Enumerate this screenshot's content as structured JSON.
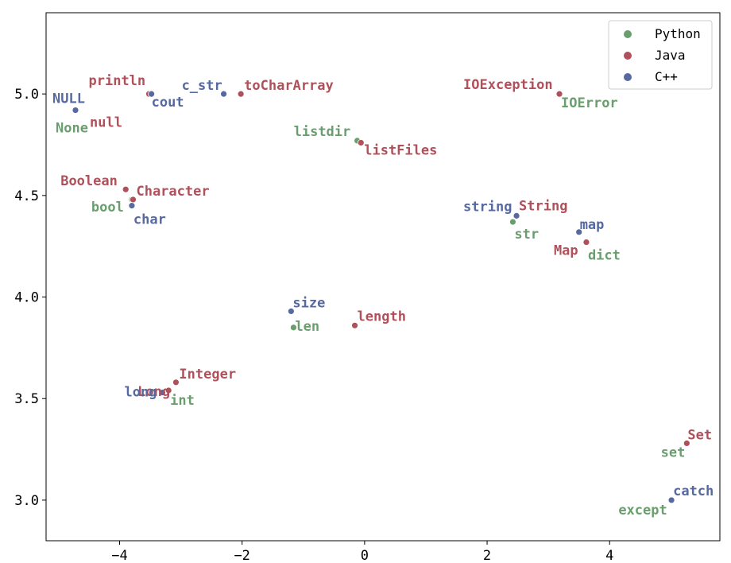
{
  "chart_data": {
    "type": "scatter",
    "title": "",
    "xlabel": "",
    "ylabel": "",
    "xlim": [
      -5.2,
      5.8
    ],
    "ylim": [
      2.8,
      5.4
    ],
    "xticks": [
      -4,
      -2,
      0,
      2,
      4
    ],
    "yticks": [
      3.0,
      3.5,
      4.0,
      4.5,
      5.0
    ],
    "xtick_labels": [
      "−4",
      "−2",
      "0",
      "2",
      "4"
    ],
    "ytick_labels": [
      "3.0",
      "3.5",
      "4.0",
      "4.5",
      "5.0"
    ],
    "grid": false,
    "legend_position": "top-right",
    "series": [
      {
        "name": "Python",
        "color": "#6a9e6e",
        "points": [
          {
            "label": "None",
            "x": -4.72,
            "y": 4.92
          },
          {
            "label": "listdir",
            "x": -0.12,
            "y": 4.77
          },
          {
            "label": "IOError",
            "x": 3.18,
            "y": 5.0
          },
          {
            "label": "bool",
            "x": -3.8,
            "y": 4.48
          },
          {
            "label": "str",
            "x": 2.42,
            "y": 4.37
          },
          {
            "label": "dict",
            "x": 3.62,
            "y": 4.27
          },
          {
            "label": "len",
            "x": -1.16,
            "y": 3.85
          },
          {
            "label": "int",
            "x": -3.2,
            "y": 3.54
          },
          {
            "label": "set",
            "x": 5.25,
            "y": 3.28
          },
          {
            "label": "except",
            "x": 5.0,
            "y": 3.0
          }
        ]
      },
      {
        "name": "Java",
        "color": "#b0505a",
        "points": [
          {
            "label": "println",
            "x": -3.52,
            "y": 5.0
          },
          {
            "label": "null",
            "x": -4.72,
            "y": 4.92
          },
          {
            "label": "toCharArray",
            "x": -2.02,
            "y": 5.0
          },
          {
            "label": "IOException",
            "x": 3.18,
            "y": 5.0
          },
          {
            "label": "listFiles",
            "x": -0.06,
            "y": 4.76
          },
          {
            "label": "Boolean",
            "x": -3.9,
            "y": 4.53
          },
          {
            "label": "Character",
            "x": -3.78,
            "y": 4.48
          },
          {
            "label": "String",
            "x": 2.48,
            "y": 4.4
          },
          {
            "label": "Map",
            "x": 3.62,
            "y": 4.27
          },
          {
            "label": "length",
            "x": -0.16,
            "y": 3.86
          },
          {
            "label": "Integer",
            "x": -3.08,
            "y": 3.58
          },
          {
            "label": "Long",
            "x": -3.2,
            "y": 3.54
          },
          {
            "label": "Set",
            "x": 5.26,
            "y": 3.28
          }
        ]
      },
      {
        "name": "C++",
        "color": "#5669a0",
        "points": [
          {
            "label": "NULL",
            "x": -4.72,
            "y": 4.92
          },
          {
            "label": "cout",
            "x": -3.48,
            "y": 5.0
          },
          {
            "label": "c_str",
            "x": -2.3,
            "y": 5.0
          },
          {
            "label": "char",
            "x": -3.8,
            "y": 4.45
          },
          {
            "label": "string",
            "x": 2.48,
            "y": 4.4
          },
          {
            "label": "map",
            "x": 3.5,
            "y": 4.32
          },
          {
            "label": "size",
            "x": -1.2,
            "y": 3.93
          },
          {
            "label": "long",
            "x": -3.3,
            "y": 3.53
          },
          {
            "label": "catch",
            "x": 5.01,
            "y": 3.0
          }
        ]
      }
    ]
  }
}
